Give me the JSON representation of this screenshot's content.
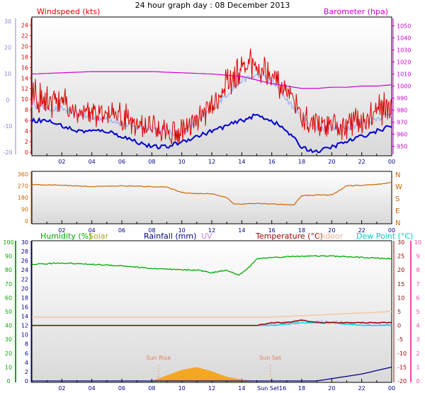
{
  "title": "24 hour graph day : 08 December 2013",
  "colors": {
    "wind": "#dd0000",
    "gust_avg": "#0000cc",
    "wind_avg": "#a8b4f0",
    "baro": "#cc00cc",
    "dir": "#cc6600",
    "humidity": "#00aa00",
    "solar": "#aaaa00",
    "rain": "#000088",
    "uv": "#cc88cc",
    "temp": "#990000",
    "indoor": "#f2c8a8",
    "dew": "#00dddd",
    "plotbg_top": "#ffffff",
    "plotbg_bottom": "#dcdcdc",
    "axis_left": "#8888cc"
  },
  "panel1": {
    "label_wind": "Windspeed (kts)",
    "label_baro": "Barometer (hpa)",
    "wind_ticks": [
      "24",
      "22",
      "20",
      "18",
      "16",
      "14",
      "12",
      "10",
      "8",
      "6",
      "4",
      "2",
      "0"
    ],
    "wind_ticks_lower": [
      "0",
      "-10",
      "-20"
    ],
    "wind_ticks_upper": [
      "30",
      "20",
      "10"
    ],
    "baro_ticks": [
      "1050",
      "1040",
      "1030",
      "1020",
      "1010",
      "1000",
      "990",
      "980",
      "970",
      "960",
      "950"
    ],
    "hour_ticks": [
      "02",
      "04",
      "06",
      "08",
      "10",
      "12",
      "14",
      "16",
      "18",
      "20",
      "22",
      "00"
    ]
  },
  "panel2": {
    "deg_ticks": [
      "360",
      "270",
      "180",
      "90",
      "0"
    ],
    "compass": [
      "N",
      "W",
      "S",
      "E",
      "N"
    ],
    "hour_ticks": [
      "02",
      "04",
      "06",
      "08",
      "10",
      "12",
      "14",
      "16",
      "18",
      "20",
      "22",
      "00"
    ]
  },
  "panel3": {
    "labels": {
      "humidity": "Humidity (%)",
      "solar": "Solar",
      "rainfall": "Rainfall (mm)",
      "uv": "UV",
      "temperature": "Temperature (°C)",
      "indoor": "Indoor",
      "dew": "Dew Point (°C)"
    },
    "humidity_ticks": [
      "100",
      "90",
      "80",
      "70",
      "60",
      "50",
      "40",
      "30",
      "20",
      "10",
      "0"
    ],
    "rain_ticks": [
      "30",
      "28",
      "26",
      "24",
      "22",
      "20",
      "18",
      "16",
      "14",
      "12",
      "10",
      "8",
      "6",
      "4",
      "2",
      "0"
    ],
    "temp_ticks": [
      "30",
      "25",
      "20",
      "15",
      "10",
      "5",
      "0",
      "-5",
      "-10",
      "-15",
      "-20"
    ],
    "uv_ticks": [
      "10",
      "9",
      "8",
      "7",
      "6",
      "5",
      "4",
      "3",
      "2",
      "1",
      "0"
    ],
    "sunrise_label": "Sun Rise",
    "sunset_label": "Sun Set",
    "hour_ticks": [
      "02",
      "04",
      "06",
      "08",
      "10",
      "12",
      "14",
      "Sun Set16",
      "18",
      "20",
      "22",
      "00"
    ]
  },
  "chart_data": [
    {
      "type": "line",
      "title": "24 hour graph day : 08 December 2013",
      "x_unit": "hour",
      "xlim": [
        0,
        24
      ],
      "y_left": {
        "label": "Windspeed (kts)",
        "ylim": [
          0,
          25
        ]
      },
      "y_right": {
        "label": "Barometer (hpa)",
        "ylim": [
          945,
          1055
        ]
      },
      "series": [
        {
          "name": "Windspeed (kts)",
          "axis": "left",
          "x": [
            0,
            1,
            2,
            3,
            4,
            5,
            6,
            7,
            8,
            9,
            10,
            11,
            12,
            13,
            14,
            15,
            16,
            17,
            18,
            19,
            20,
            21,
            22,
            23,
            24
          ],
          "values": [
            9,
            8,
            8,
            7,
            6,
            6,
            5,
            4,
            4,
            3,
            3,
            5,
            8,
            11,
            14,
            15,
            14,
            10,
            6,
            4,
            4,
            4,
            5,
            6,
            7
          ]
        },
        {
          "name": "Windspeed (kts) gust",
          "axis": "left",
          "x": [
            0,
            1,
            2,
            3,
            4,
            5,
            6,
            7,
            8,
            9,
            10,
            11,
            12,
            13,
            14,
            15,
            16,
            17,
            18,
            19,
            20,
            21,
            22,
            23,
            24
          ],
          "values": [
            13,
            12,
            12,
            10,
            9,
            9,
            9,
            7,
            7,
            6,
            6,
            8,
            11,
            15,
            18,
            19,
            17,
            13,
            9,
            7,
            7,
            7,
            8,
            10,
            11
          ]
        },
        {
          "name": "Windspeed (kts) average",
          "axis": "left",
          "x": [
            0,
            1,
            2,
            3,
            4,
            5,
            6,
            7,
            8,
            9,
            10,
            11,
            12,
            13,
            14,
            15,
            16,
            17,
            18,
            19,
            20,
            21,
            22,
            23,
            24
          ],
          "values": [
            6,
            6,
            5,
            4,
            4,
            4,
            3,
            2,
            1,
            1,
            2,
            3,
            4,
            5,
            6,
            7,
            6,
            4,
            1,
            0,
            1,
            2,
            3,
            4,
            5
          ]
        },
        {
          "name": "Barometer (hpa)",
          "axis": "right",
          "x": [
            0,
            2,
            4,
            6,
            8,
            10,
            12,
            13,
            14,
            15,
            16,
            17,
            18,
            19,
            20,
            21,
            22,
            23,
            24
          ],
          "values": [
            1010,
            1011,
            1012,
            1012,
            1012,
            1011,
            1010,
            1009,
            1008,
            1005,
            1002,
            1000,
            998,
            998,
            999,
            999,
            1000,
            1000,
            1001
          ]
        }
      ]
    },
    {
      "type": "line",
      "x_unit": "hour",
      "xlim": [
        0,
        24
      ],
      "y_left": {
        "label": "",
        "ylim": [
          0,
          360
        ]
      },
      "series": [
        {
          "name": "wind direction",
          "x": [
            0,
            2,
            4,
            6,
            8,
            9,
            10,
            11,
            12,
            13,
            13.5,
            14,
            15,
            16,
            17,
            17.5,
            18,
            19,
            20,
            21,
            22,
            23,
            24
          ],
          "values": [
            280,
            275,
            265,
            270,
            265,
            260,
            220,
            210,
            210,
            180,
            130,
            130,
            135,
            130,
            125,
            125,
            195,
            200,
            200,
            270,
            275,
            280,
            295
          ]
        }
      ]
    },
    {
      "type": "line",
      "x_unit": "hour",
      "xlim": [
        0,
        24
      ],
      "y_left": {
        "label": "Humidity (%)",
        "ylim": [
          0,
          100
        ]
      },
      "y_right": {
        "label": "Temperature (°C)",
        "ylim": [
          -20,
          30
        ]
      },
      "series": [
        {
          "name": "Humidity (%)",
          "axis": "humidity",
          "x": [
            0,
            2,
            4,
            6,
            8,
            10,
            11,
            12,
            13,
            13.8,
            14.5,
            15,
            16,
            18,
            19,
            20,
            22,
            24
          ],
          "values": [
            84,
            85,
            84,
            83,
            81,
            80,
            80,
            78,
            80,
            76,
            82,
            88,
            89,
            90,
            90,
            90,
            89,
            88
          ]
        },
        {
          "name": "Temperature (°C)",
          "axis": "temp",
          "x": [
            0,
            2,
            4,
            6,
            8,
            10,
            12,
            14,
            16,
            17,
            18,
            19,
            20,
            22,
            24
          ],
          "values": [
            -2,
            -3,
            -3,
            -4,
            -4,
            -4,
            -3,
            -1,
            1,
            1,
            2,
            1,
            1,
            1,
            1
          ]
        },
        {
          "name": "Dew Point (°C)",
          "axis": "temp",
          "x": [
            0,
            2,
            4,
            6,
            8,
            10,
            12,
            14,
            16,
            18,
            20,
            22,
            24
          ],
          "values": [
            -5,
            -6,
            -6.5,
            -7,
            -6,
            -5,
            -4,
            -2,
            0,
            1,
            1,
            0,
            0
          ]
        },
        {
          "name": "Indoor",
          "axis": "temp",
          "x": [
            0,
            4,
            8,
            12,
            16,
            20,
            24
          ],
          "values": [
            3,
            3,
            3,
            3,
            3,
            4,
            5
          ]
        },
        {
          "name": "Solar",
          "axis": "uv",
          "x": [
            8,
            9,
            10,
            11,
            12,
            13,
            14,
            15
          ],
          "values": [
            0,
            0.4,
            0.8,
            1.0,
            0.7,
            0.3,
            0.1,
            0
          ]
        },
        {
          "name": "Rainfall (mm)",
          "axis": "rain",
          "x": [
            0,
            19,
            20,
            22,
            24
          ],
          "values": [
            0,
            0,
            0.5,
            1.5,
            3
          ]
        }
      ]
    }
  ]
}
